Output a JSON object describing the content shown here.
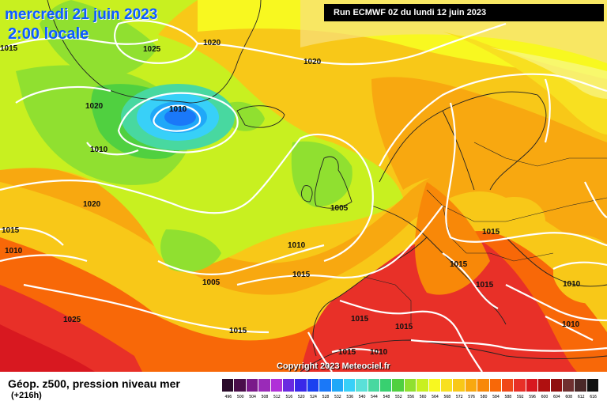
{
  "header": {
    "date": "mercredi 21 juin 2023",
    "local_time": "2:00 locale",
    "run": "Run ECMWF 0Z du lundi 12 juin 2023"
  },
  "copyright": "Copyright 2023 Meteociel.fr",
  "legend": {
    "title": "Géop. z500, pression niveau mer",
    "lead": "(+216h)",
    "scale_values": [
      "496",
      "500",
      "504",
      "508",
      "512",
      "516",
      "520",
      "524",
      "528",
      "532",
      "536",
      "540",
      "544",
      "548",
      "552",
      "556",
      "560",
      "564",
      "568",
      "572",
      "576",
      "580",
      "584",
      "588",
      "592",
      "596",
      "600",
      "604",
      "608",
      "612",
      "616"
    ],
    "scale_colors": [
      "#2a0a2a",
      "#4a0e4a",
      "#7a1a8a",
      "#9a2ab8",
      "#b030d8",
      "#6a2ae0",
      "#3a28e8",
      "#1a40f0",
      "#1a78f8",
      "#20a8f8",
      "#38d0f8",
      "#5ae0d8",
      "#48d8a0",
      "#38d070",
      "#50d040",
      "#90e030",
      "#c8f020",
      "#f8f820",
      "#f8e020",
      "#f8c818",
      "#f8a810",
      "#f88808",
      "#f86808",
      "#f04818",
      "#e83028",
      "#d81820",
      "#b01010",
      "#901010",
      "#703030",
      "#4a2828",
      "#101010"
    ]
  },
  "isobar_labels": [
    {
      "id": "lbl-1015-nw",
      "text": "1015"
    },
    {
      "id": "lbl-1025-green",
      "text": "1025"
    },
    {
      "id": "lbl-1020-top",
      "text": "1020"
    },
    {
      "id": "lbl-1020-center",
      "text": "1020"
    },
    {
      "id": "lbl-1010-low",
      "text": "1010"
    },
    {
      "id": "lbl-1020-west",
      "text": "1020"
    },
    {
      "id": "lbl-1010-west",
      "text": "1010"
    },
    {
      "id": "lbl-1020-sw",
      "text": "1020"
    },
    {
      "id": "lbl-1015-farwest",
      "text": "1015"
    },
    {
      "id": "lbl-1010-farwest",
      "text": "1010"
    },
    {
      "id": "lbl-1005-uk",
      "text": "1005"
    },
    {
      "id": "lbl-1010-mid",
      "text": "1010"
    },
    {
      "id": "lbl-1005-mid",
      "text": "1005"
    },
    {
      "id": "lbl-1015-mid",
      "text": "1015"
    },
    {
      "id": "lbl-1025-south",
      "text": "1025"
    },
    {
      "id": "lbl-1015-south",
      "text": "1015"
    },
    {
      "id": "lbl-1015-europe",
      "text": "1015"
    },
    {
      "id": "lbl-1015-alps",
      "text": "1015"
    },
    {
      "id": "lbl-1015-italy",
      "text": "1015"
    },
    {
      "id": "lbl-1010-east",
      "text": "1010"
    },
    {
      "id": "lbl-1015-iberia",
      "text": "1015"
    },
    {
      "id": "lbl-1015-med",
      "text": "1015"
    },
    {
      "id": "lbl-1010-se",
      "text": "1010"
    },
    {
      "id": "lbl-1015-africa",
      "text": "1015"
    },
    {
      "id": "lbl-1010-africa",
      "text": "1010"
    }
  ]
}
